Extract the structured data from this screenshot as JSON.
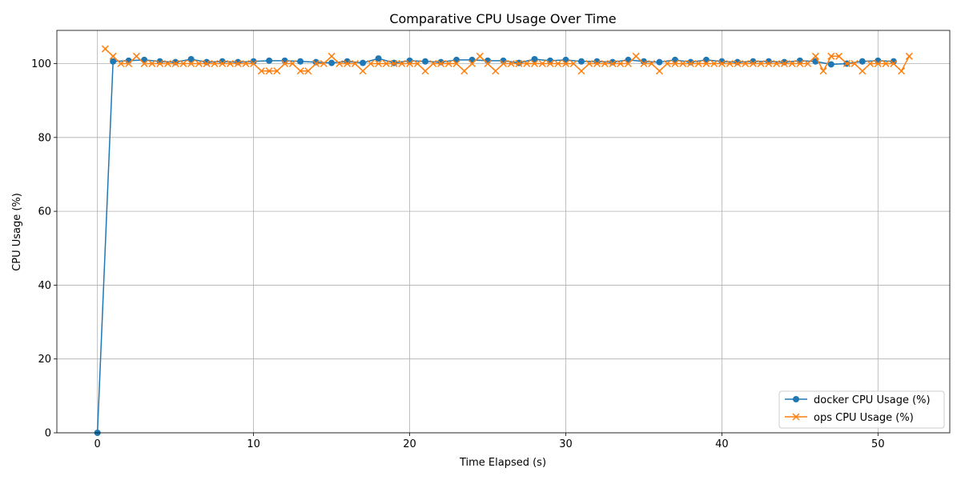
{
  "chart_data": {
    "type": "line",
    "title": "Comparative CPU Usage Over Time",
    "xlabel": "Time Elapsed (s)",
    "ylabel": "CPU Usage (%)",
    "xlim": [
      -2.6,
      54.6
    ],
    "ylim": [
      0,
      109
    ],
    "xticks": [
      0,
      10,
      20,
      30,
      40,
      50
    ],
    "yticks": [
      0,
      20,
      40,
      60,
      80,
      100
    ],
    "grid": true,
    "legend_position": "bottom-right",
    "series": [
      {
        "name": "docker CPU Usage (%)",
        "color": "#1f77b4",
        "marker": "circle",
        "x": [
          0,
          1,
          2,
          3,
          4,
          5,
          6,
          7,
          8,
          9,
          10,
          11,
          12,
          13,
          14,
          15,
          16,
          17,
          18,
          19,
          20,
          21,
          22,
          23,
          24,
          25,
          26,
          27,
          28,
          29,
          30,
          31,
          32,
          33,
          34,
          35,
          36,
          37,
          38,
          39,
          40,
          41,
          42,
          43,
          44,
          45,
          46,
          47,
          48,
          49,
          50,
          51
        ],
        "y": [
          0,
          100.6,
          100.8,
          101.0,
          100.6,
          100.4,
          101.2,
          100.4,
          100.6,
          100.4,
          100.6,
          100.8,
          100.8,
          100.6,
          100.4,
          100.2,
          100.6,
          100.2,
          101.4,
          100.2,
          100.8,
          100.6,
          100.4,
          101.0,
          101.0,
          100.8,
          100.8,
          100.2,
          101.2,
          100.8,
          101.0,
          100.6,
          100.6,
          100.4,
          101.0,
          100.6,
          100.4,
          101.0,
          100.4,
          101.0,
          100.6,
          100.4,
          100.6,
          100.6,
          100.4,
          100.8,
          100.6,
          99.8,
          100.0,
          100.6,
          100.8,
          100.6
        ]
      },
      {
        "name": "ops CPU Usage (%)",
        "color": "#ff7f0e",
        "marker": "x",
        "x": [
          0.5,
          1.0,
          1.5,
          2.0,
          2.5,
          3.0,
          3.5,
          4.0,
          4.5,
          5.0,
          5.5,
          6.0,
          6.5,
          7.0,
          7.5,
          8.0,
          8.5,
          9.0,
          9.5,
          10.0,
          10.5,
          11.0,
          11.5,
          12.0,
          12.5,
          13.0,
          13.5,
          14.0,
          14.5,
          15.0,
          15.5,
          16.0,
          16.5,
          17.0,
          17.5,
          18.0,
          18.5,
          19.0,
          19.5,
          20.0,
          20.5,
          21.0,
          21.5,
          22.0,
          22.5,
          23.0,
          23.5,
          24.0,
          24.5,
          25.0,
          25.5,
          26.0,
          26.5,
          27.0,
          27.5,
          28.0,
          28.5,
          29.0,
          29.5,
          30.0,
          30.5,
          31.0,
          31.5,
          32.0,
          32.5,
          33.0,
          33.5,
          34.0,
          34.5,
          35.0,
          35.5,
          36.0,
          36.5,
          37.0,
          37.5,
          38.0,
          38.5,
          39.0,
          39.5,
          40.0,
          40.5,
          41.0,
          41.5,
          42.0,
          42.5,
          43.0,
          43.5,
          44.0,
          44.5,
          45.0,
          45.5,
          46.0,
          46.5,
          47.0,
          47.5,
          48.0,
          48.5,
          49.0,
          49.5,
          50.0,
          50.5,
          51.0,
          51.5,
          52.0
        ],
        "y": [
          104,
          102,
          100,
          100,
          102,
          100,
          100,
          100,
          100,
          100,
          100,
          100,
          100,
          100,
          100,
          100,
          100,
          100,
          100,
          100,
          98,
          98,
          98,
          100,
          100,
          98,
          98,
          100,
          100,
          102,
          100,
          100,
          100,
          98,
          100,
          100,
          100,
          100,
          100,
          100,
          100,
          98,
          100,
          100,
          100,
          100,
          98,
          100,
          102,
          100,
          98,
          100,
          100,
          100,
          100,
          100,
          100,
          100,
          100,
          100,
          100,
          98,
          100,
          100,
          100,
          100,
          100,
          100,
          102,
          100,
          100,
          98,
          100,
          100,
          100,
          100,
          100,
          100,
          100,
          100,
          100,
          100,
          100,
          100,
          100,
          100,
          100,
          100,
          100,
          100,
          100,
          102,
          98,
          102,
          102,
          100,
          100,
          98,
          100,
          100,
          100,
          100,
          98,
          102
        ]
      }
    ]
  }
}
